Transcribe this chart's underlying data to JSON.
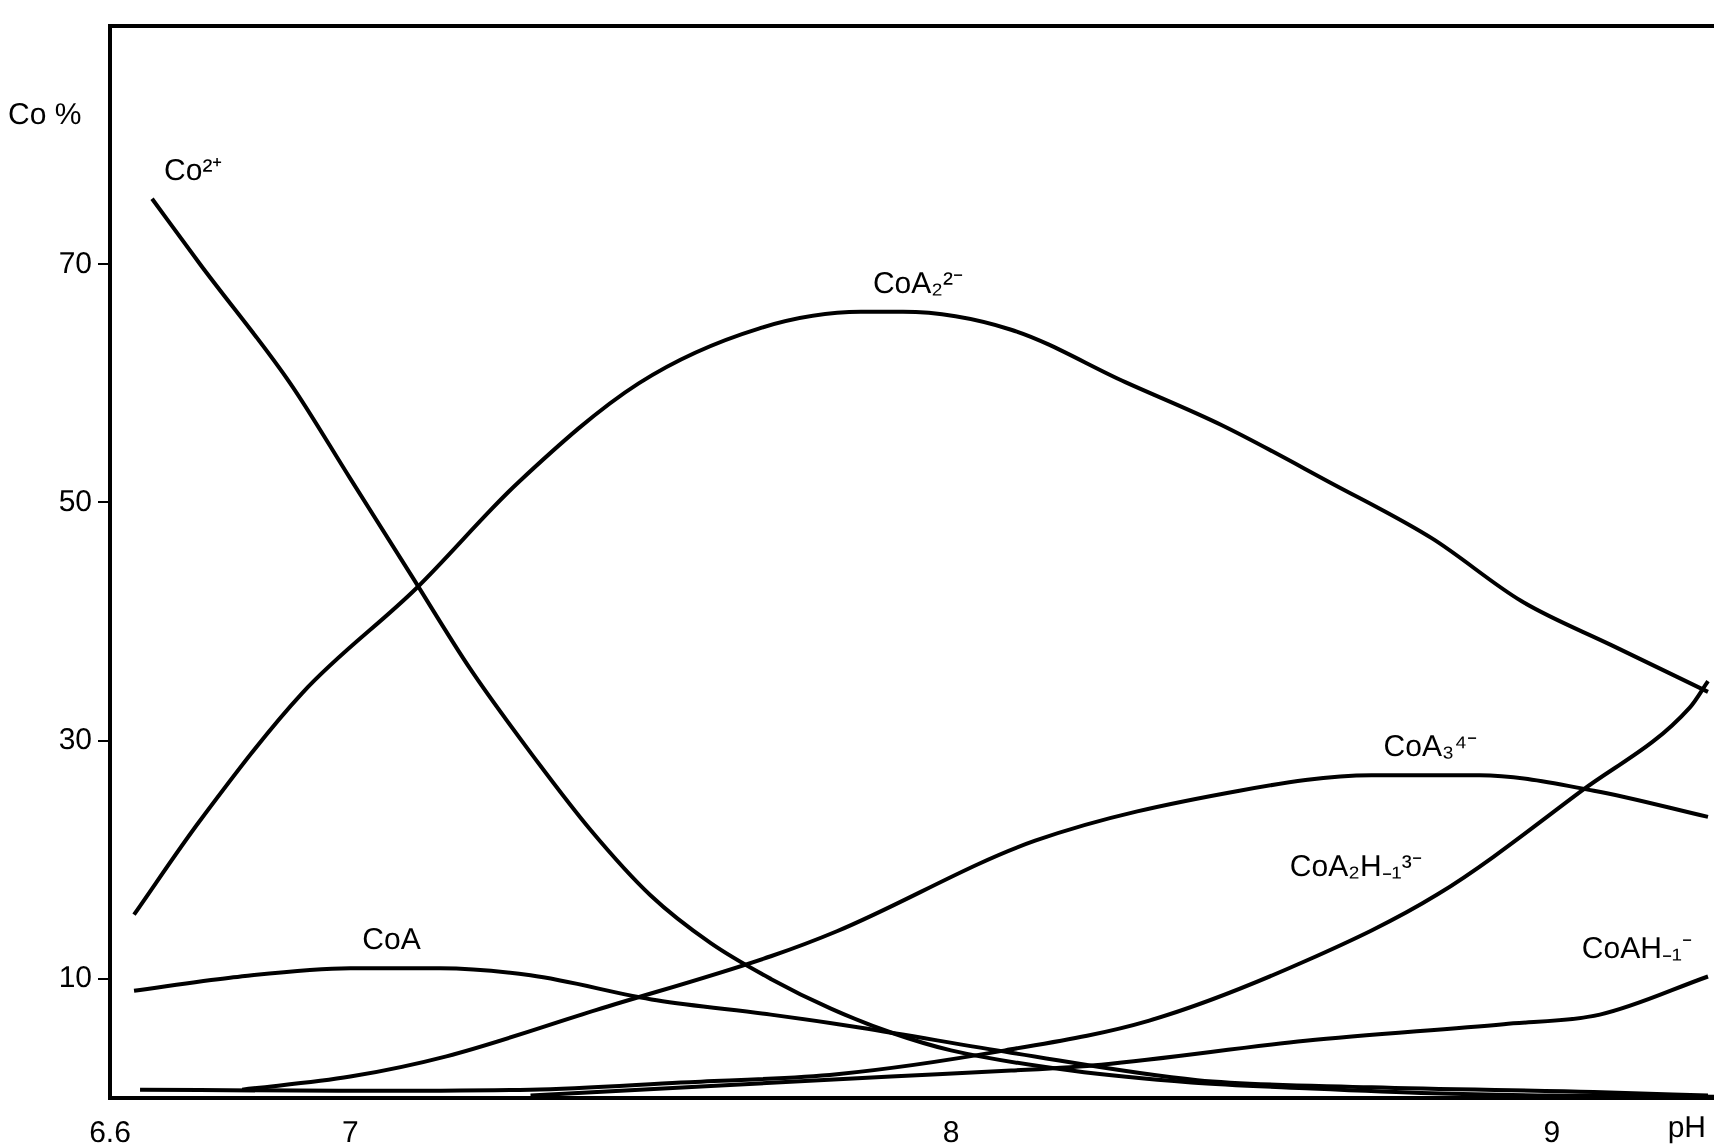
{
  "chart_data": {
    "type": "line",
    "xlabel": "pH",
    "ylabel": "Co %",
    "xlim": [
      6.6,
      9.27
    ],
    "ylim": [
      0,
      90
    ],
    "xticks": [
      6.6,
      7,
      8,
      9
    ],
    "yticks": [
      10,
      30,
      50,
      70
    ],
    "grid": false,
    "legend": false,
    "marker": "none",
    "line_style": "solid",
    "series": [
      {
        "name": "Co²⁺",
        "color": "#000000",
        "x": [
          6.67,
          6.75,
          6.9,
          7.0,
          7.1,
          7.2,
          7.3,
          7.4,
          7.5,
          7.6,
          7.7,
          7.8,
          7.9,
          8.0,
          8.2,
          8.4,
          8.6,
          8.8,
          9.0,
          9.27
        ],
        "values": [
          75.5,
          70,
          60,
          52,
          44,
          36,
          29,
          22.5,
          17,
          13,
          10,
          7.5,
          5.5,
          4,
          2.3,
          1.3,
          0.8,
          0.4,
          0.2,
          0.1
        ]
      },
      {
        "name": "CoA₂²⁻",
        "color": "#000000",
        "x": [
          6.64,
          6.75,
          6.92,
          7.11,
          7.28,
          7.48,
          7.68,
          7.85,
          7.92,
          8.1,
          8.29,
          8.45,
          8.63,
          8.8,
          8.95,
          9.1,
          9.26
        ],
        "values": [
          15.4,
          23.3,
          34,
          42.8,
          51.7,
          60,
          64.6,
          66,
          66,
          64.5,
          60.1,
          56.5,
          51.7,
          47,
          41.7,
          38,
          34.1
        ]
      },
      {
        "name": "CoA",
        "color": "#000000",
        "x": [
          6.64,
          6.8,
          7.0,
          7.15,
          7.3,
          7.51,
          7.7,
          7.85,
          8.1,
          8.41,
          8.7,
          9.07,
          9.26
        ],
        "values": [
          9.0,
          10.1,
          10.9,
          10.9,
          10.3,
          8.2,
          7.0,
          5.9,
          3.8,
          1.5,
          0.9,
          0.5,
          0.2
        ]
      },
      {
        "name": "CoA₃⁴⁻",
        "color": "#000000",
        "x": [
          6.82,
          7.0,
          7.16,
          7.41,
          7.7,
          7.81,
          8.14,
          8.48,
          8.7,
          8.88,
          9.07,
          9.26
        ],
        "values": [
          0.7,
          1.8,
          3.5,
          7.4,
          11.9,
          14,
          21.6,
          25.8,
          27.1,
          27.1,
          25.8,
          23.6
        ]
      },
      {
        "name": "CoA₂H₋₁³⁻",
        "color": "#000000",
        "x": [
          6.65,
          7.0,
          7.3,
          7.55,
          7.81,
          8.09,
          8.33,
          8.59,
          8.81,
          9.05,
          9.23,
          9.26
        ],
        "values": [
          0.7,
          0.6,
          0.7,
          1.3,
          2.0,
          4.0,
          6.5,
          11.5,
          17.1,
          25.8,
          32.8,
          35
        ]
      },
      {
        "name": "CoAH₋₁⁻",
        "color": "#000000",
        "x": [
          7.3,
          7.6,
          7.9,
          8.1,
          8.25,
          8.59,
          8.92,
          9.08,
          9.26
        ],
        "values": [
          0.2,
          1.0,
          1.8,
          2.3,
          2.8,
          4.8,
          6.2,
          7.0,
          10.2
        ]
      }
    ]
  }
}
